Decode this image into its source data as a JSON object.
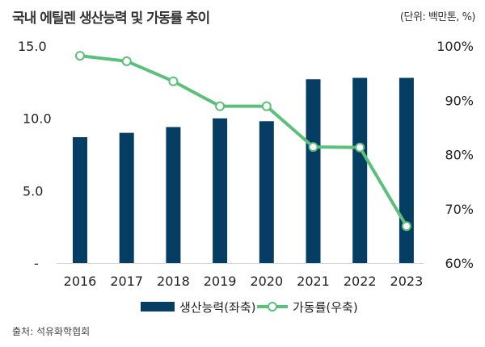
{
  "title": "국내 에틸렌 생산능력 및 가동률 추이",
  "unit": "(단위: 백만톤, %)",
  "source": "출처: 석유화학협회",
  "chart_data": {
    "type": "bar+line",
    "categories": [
      "2016",
      "2017",
      "2018",
      "2019",
      "2020",
      "2021",
      "2022",
      "2023"
    ],
    "series": [
      {
        "name": "생산능력(좌축)",
        "type": "bar",
        "axis": "left",
        "color": "#053e62",
        "values": [
          8.7,
          9.0,
          9.4,
          10.0,
          9.8,
          12.7,
          12.8,
          12.8
        ]
      },
      {
        "name": "가동률(우축)",
        "type": "line",
        "axis": "right",
        "color": "#5cbf7a",
        "values": [
          98.2,
          97.2,
          93.5,
          88.9,
          88.9,
          81.4,
          81.3,
          66.8
        ]
      }
    ],
    "left_axis": {
      "ylim": [
        0,
        15
      ],
      "tick_labels": [
        "-",
        "5.0",
        "10.0",
        "15.0"
      ]
    },
    "right_axis": {
      "ylim": [
        60,
        100
      ],
      "tick_labels": [
        "60%",
        "70%",
        "80%",
        "90%",
        "100%"
      ]
    },
    "legend": "bottom",
    "grid": false
  }
}
